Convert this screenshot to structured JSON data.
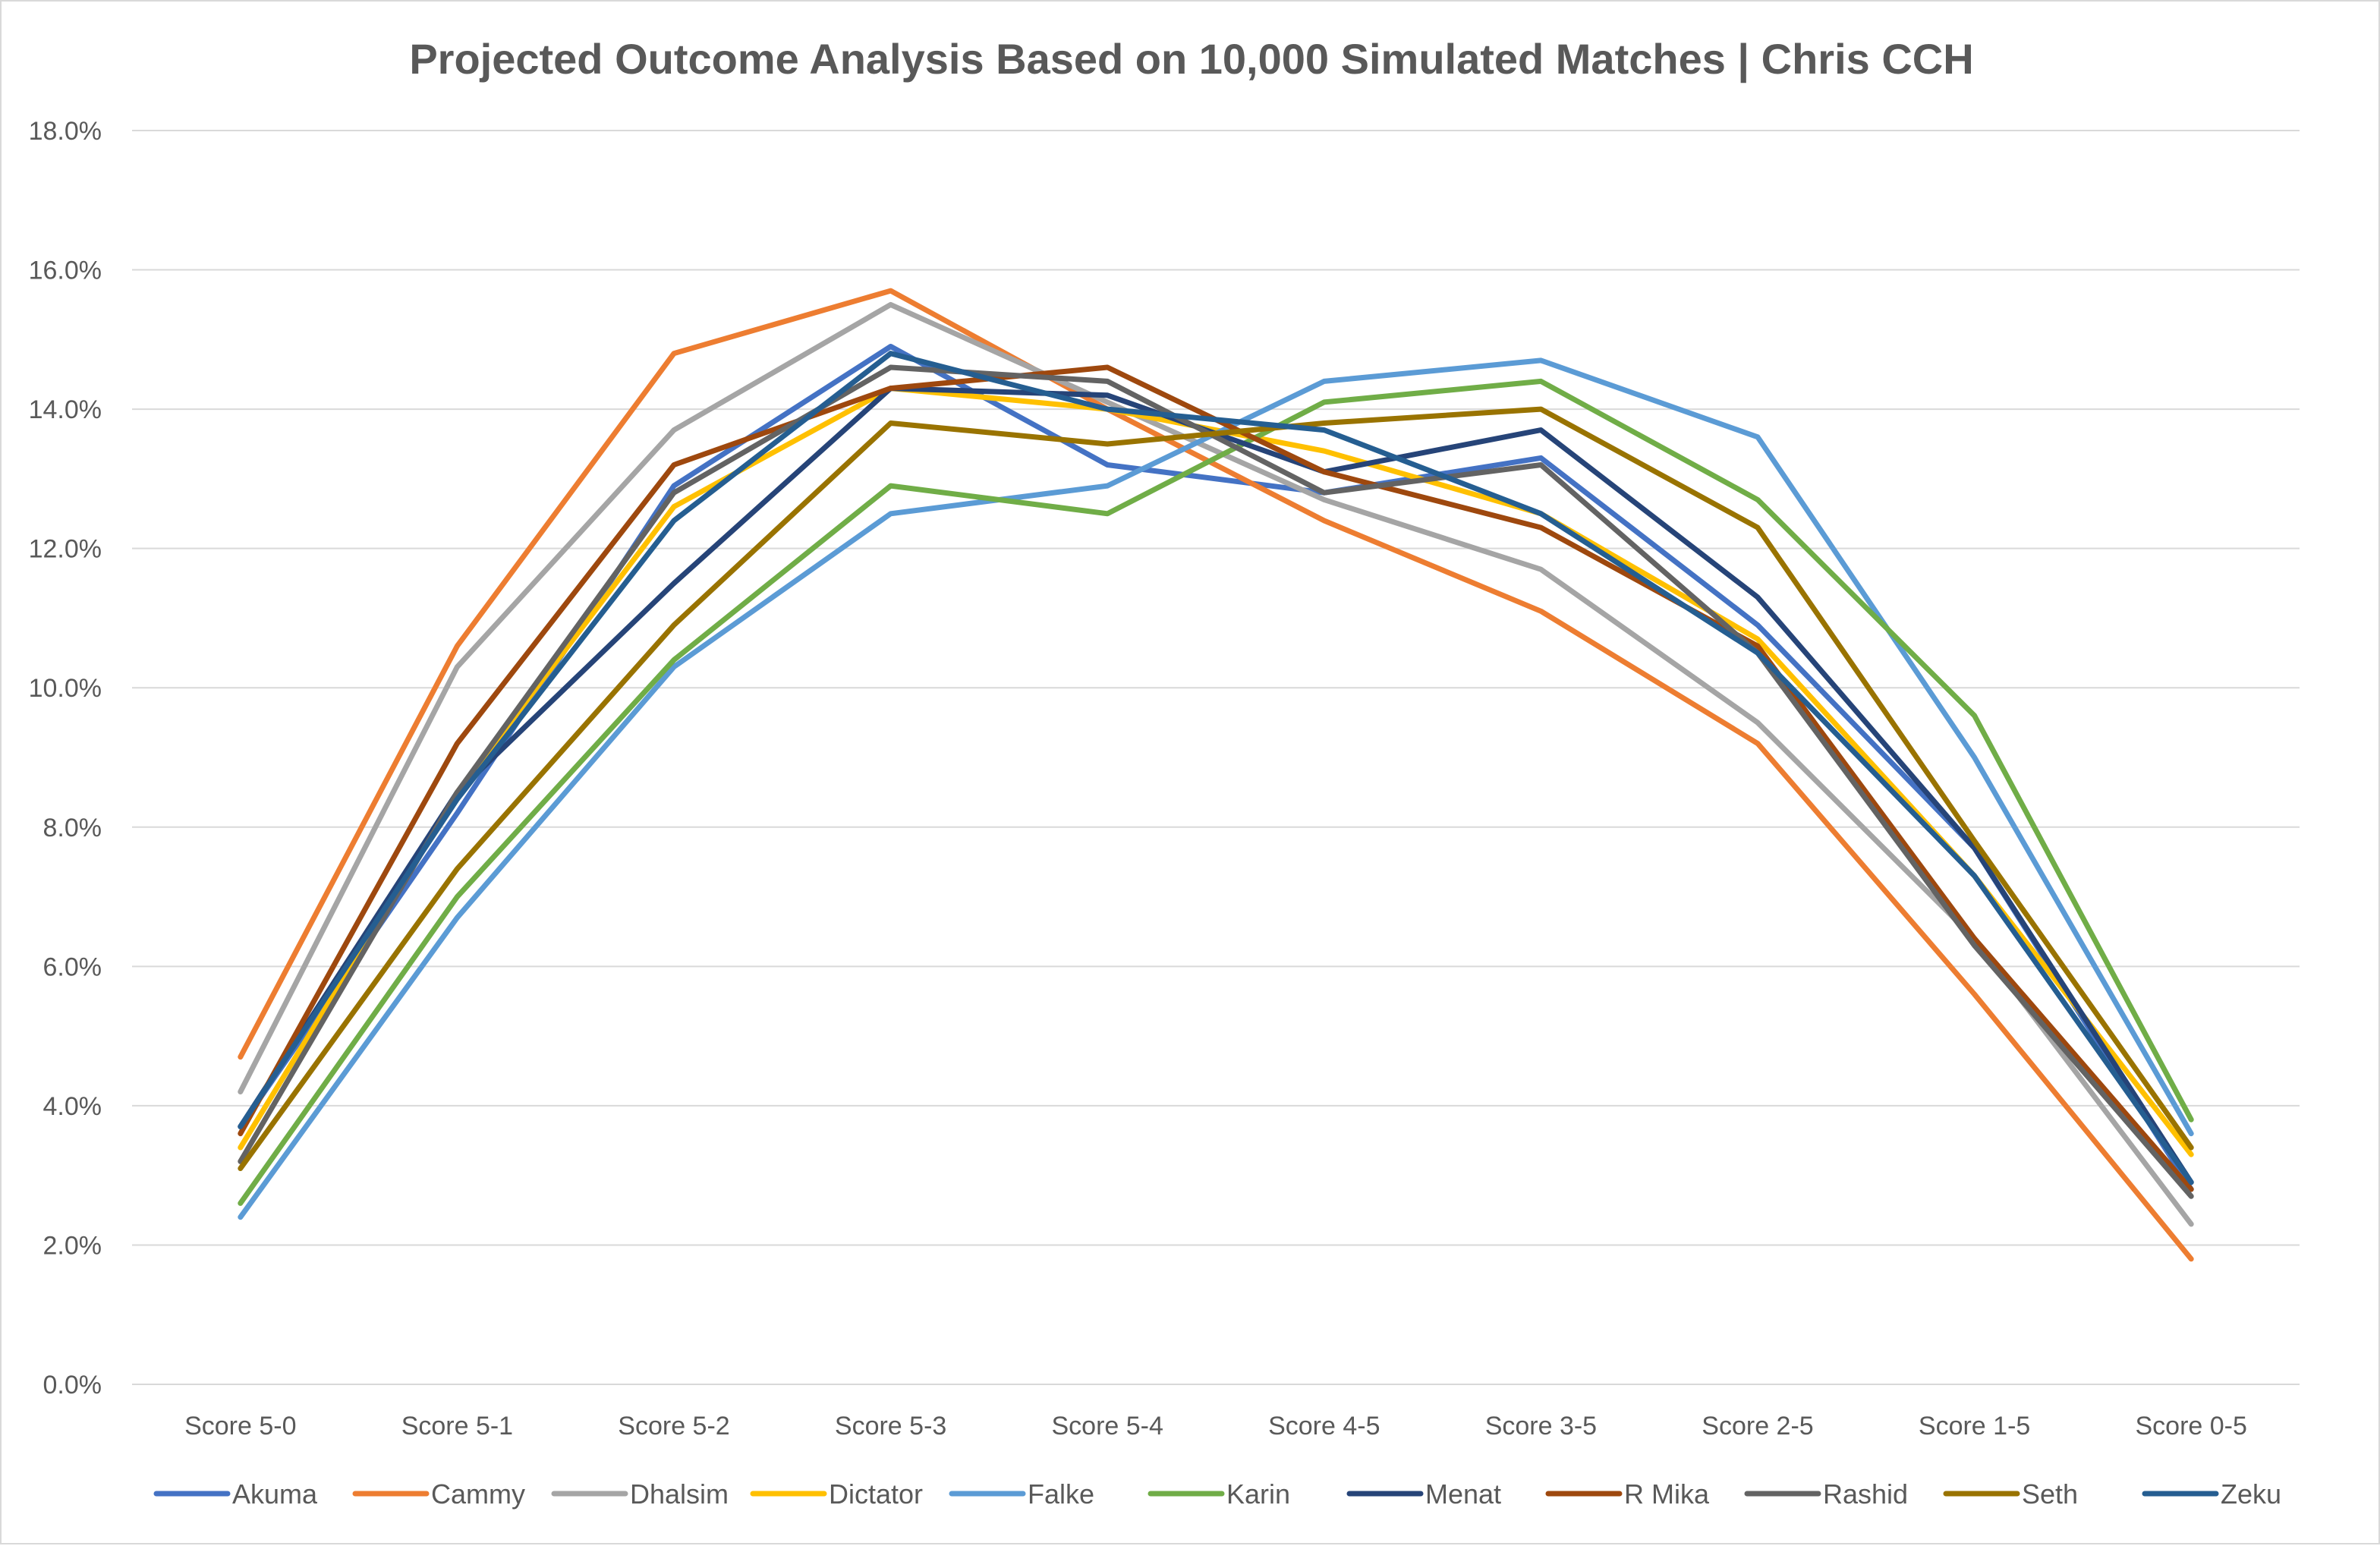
{
  "chart_data": {
    "type": "line",
    "title": "Projected Outcome Analysis Based on 10,000 Simulated Matches | Chris CCH",
    "xlabel": "",
    "ylabel": "",
    "ylim": [
      0,
      18
    ],
    "y_ticks": [
      0,
      2,
      4,
      6,
      8,
      10,
      12,
      14,
      16,
      18
    ],
    "y_tick_labels": [
      "0.0%",
      "2.0%",
      "4.0%",
      "6.0%",
      "8.0%",
      "10.0%",
      "12.0%",
      "14.0%",
      "16.0%",
      "18.0%"
    ],
    "grid": true,
    "legend_position": "bottom",
    "categories": [
      "Score 5-0",
      "Score 5-1",
      "Score 5-2",
      "Score 5-3",
      "Score 5-4",
      "Score 4-5",
      "Score 3-5",
      "Score 2-5",
      "Score 1-5",
      "Score 0-5"
    ],
    "series": [
      {
        "name": "Akuma",
        "color": "#4472C4",
        "values": [
          3.7,
          8.2,
          12.9,
          14.9,
          13.2,
          12.8,
          13.3,
          10.9,
          7.7,
          2.8
        ]
      },
      {
        "name": "Cammy",
        "color": "#ED7D31",
        "values": [
          4.7,
          10.6,
          14.8,
          15.7,
          14.0,
          12.4,
          11.1,
          9.2,
          5.6,
          1.8
        ]
      },
      {
        "name": "Dhalsim",
        "color": "#A5A5A5",
        "values": [
          4.2,
          10.3,
          13.7,
          15.5,
          14.1,
          12.7,
          11.7,
          9.5,
          6.4,
          2.3
        ]
      },
      {
        "name": "Dictator",
        "color": "#FFC000",
        "values": [
          3.4,
          8.5,
          12.6,
          14.3,
          14.0,
          13.4,
          12.5,
          10.7,
          7.3,
          3.3
        ]
      },
      {
        "name": "Falke",
        "color": "#5B9BD5",
        "values": [
          2.4,
          6.7,
          10.3,
          12.5,
          12.9,
          14.4,
          14.7,
          13.6,
          9.0,
          3.6
        ]
      },
      {
        "name": "Karin",
        "color": "#70AD47",
        "values": [
          2.6,
          7.0,
          10.4,
          12.9,
          12.5,
          14.1,
          14.4,
          12.7,
          9.6,
          3.8
        ]
      },
      {
        "name": "Menat",
        "color": "#264478",
        "values": [
          3.7,
          8.5,
          11.5,
          14.3,
          14.2,
          13.1,
          13.7,
          11.3,
          7.7,
          2.9
        ]
      },
      {
        "name": "R Mika",
        "color": "#9E480E",
        "values": [
          3.6,
          9.2,
          13.2,
          14.3,
          14.6,
          13.1,
          12.3,
          10.6,
          6.4,
          2.8
        ]
      },
      {
        "name": "Rashid",
        "color": "#636363",
        "values": [
          3.2,
          8.5,
          12.8,
          14.6,
          14.4,
          12.8,
          13.2,
          10.5,
          6.3,
          2.7
        ]
      },
      {
        "name": "Seth",
        "color": "#997300",
        "values": [
          3.1,
          7.4,
          10.9,
          13.8,
          13.5,
          13.8,
          14.0,
          12.3,
          7.8,
          3.4
        ]
      },
      {
        "name": "Zeku",
        "color": "#255E91",
        "values": [
          3.7,
          8.4,
          12.4,
          14.8,
          14.0,
          13.7,
          12.5,
          10.5,
          7.3,
          2.9
        ]
      }
    ]
  },
  "colors": {
    "gridline": "#D9D9D9",
    "text": "#595959"
  }
}
